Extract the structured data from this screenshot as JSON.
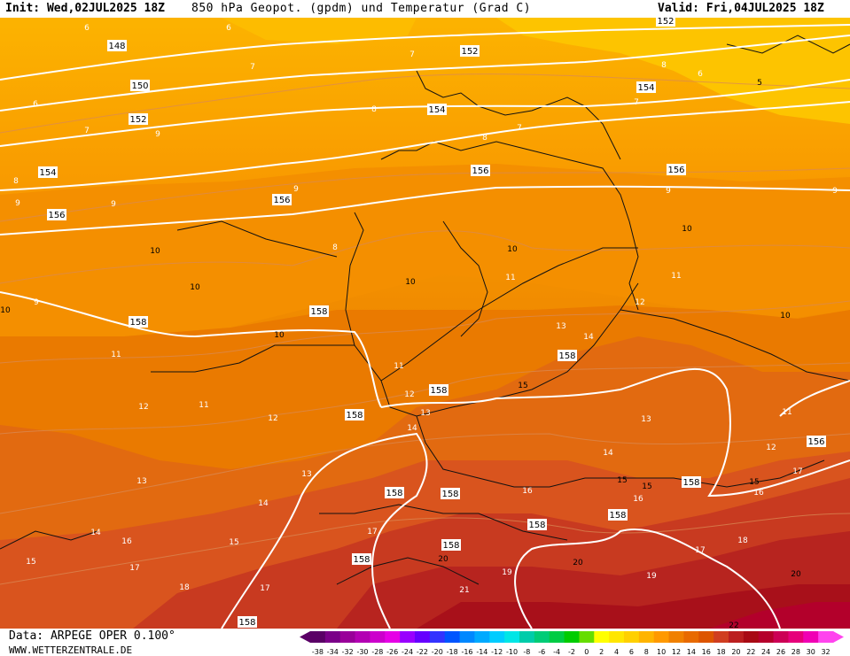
{
  "header": {
    "init": "Init: Wed,02JUL2025 18Z",
    "title": "850 hPa Geopot. (gpdm) und Temperatur (Grad C)",
    "valid": "Valid: Fri,04JUL2025 18Z"
  },
  "footer": {
    "data_source": "Data: ARPEGE OPER 0.100°",
    "website": "WWW.WETTERZENTRALE.DE"
  },
  "legend": {
    "ticks": [
      "-38",
      "-34",
      "-32",
      "-30",
      "-28",
      "-26",
      "-24",
      "-22",
      "-20",
      "-18",
      "-16",
      "-14",
      "-12",
      "-10",
      "-8",
      "-6",
      "-4",
      "-2",
      "0",
      "2",
      "4",
      "6",
      "8",
      "10",
      "12",
      "14",
      "16",
      "18",
      "20",
      "22",
      "24",
      "26",
      "28",
      "30",
      "32"
    ],
    "colors": [
      "#5a0066",
      "#7a0088",
      "#990099",
      "#b300b3",
      "#cc00cc",
      "#e600e6",
      "#9900ff",
      "#6600ff",
      "#3333ff",
      "#0055ff",
      "#0088ff",
      "#00aaff",
      "#00ccff",
      "#00e6e6",
      "#00ccaa",
      "#00cc77",
      "#00cc44",
      "#00cc00",
      "#66dd00",
      "#ffff00",
      "#ffe600",
      "#ffd000",
      "#ffb400",
      "#ff9900",
      "#f08000",
      "#e86a00",
      "#dd5500",
      "#d03e20",
      "#bb1f1f",
      "#a80a14",
      "#b5002b",
      "#cc0055",
      "#e6007a",
      "#f000b4",
      "#ff44ee"
    ]
  },
  "map": {
    "isohypse_labels": [
      "148",
      "150",
      "152",
      "152",
      "152",
      "154",
      "154",
      "154",
      "156",
      "156",
      "156",
      "156",
      "158",
      "158",
      "158",
      "158",
      "158",
      "158",
      "158",
      "158",
      "158",
      "158",
      "158",
      "158",
      "158",
      "156"
    ],
    "isotherm_labels": [
      "5",
      "6",
      "6",
      "6",
      "6",
      "7",
      "7",
      "7",
      "7",
      "7",
      "8",
      "8",
      "8",
      "8",
      "8",
      "9",
      "9",
      "9",
      "9",
      "9",
      "9",
      "9",
      "10",
      "10",
      "10",
      "10",
      "10",
      "10",
      "10",
      "10",
      "11",
      "11",
      "11",
      "11",
      "11",
      "11",
      "12",
      "12",
      "12",
      "12",
      "12",
      "13",
      "13",
      "13",
      "13",
      "13",
      "14",
      "14",
      "14",
      "14",
      "14",
      "15",
      "15",
      "15",
      "15",
      "15",
      "15",
      "16",
      "16",
      "16",
      "16",
      "17",
      "17",
      "17",
      "17",
      "17",
      "18",
      "18",
      "19",
      "19",
      "20",
      "20",
      "20",
      "21",
      "22"
    ]
  }
}
